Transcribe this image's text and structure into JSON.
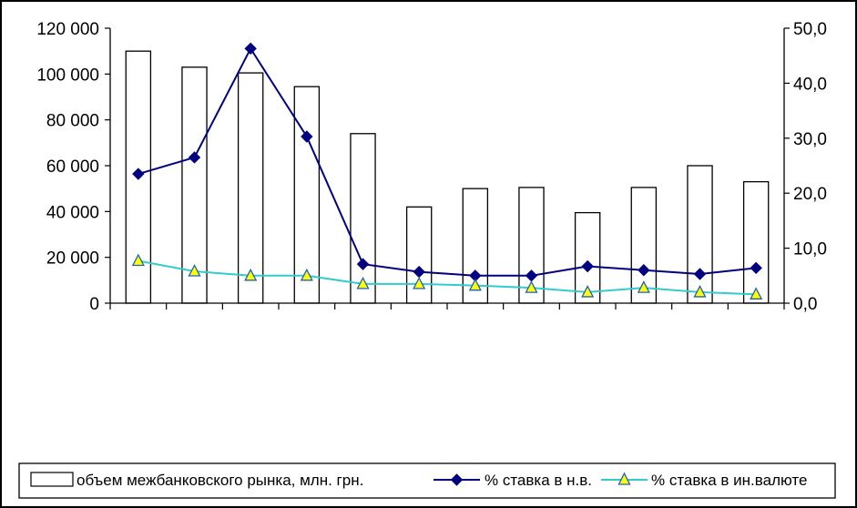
{
  "chart_data": {
    "type": "bar",
    "categories": [
      "",
      "",
      "",
      "",
      "",
      "",
      "",
      "",
      "",
      "",
      "",
      ""
    ],
    "left_axis": {
      "ylim": [
        0,
        120000
      ],
      "ticks": [
        0,
        20000,
        40000,
        60000,
        80000,
        100000,
        120000
      ],
      "tick_labels": [
        "0",
        "20 000",
        "40 000",
        "60 000",
        "80 000",
        "100 000",
        "120 000"
      ]
    },
    "right_axis": {
      "ylim": [
        0,
        50
      ],
      "ticks": [
        0,
        10,
        20,
        30,
        40,
        50
      ],
      "tick_labels": [
        "0,0",
        "10,0",
        "20,0",
        "30,0",
        "40,0",
        "50,0"
      ]
    },
    "grid": false,
    "legend_position": "bottom",
    "series": [
      {
        "name": "объем межбанковского рынка, млн. грн.",
        "type": "bar",
        "axis": "left",
        "color": "#ffffff",
        "edge_color": "#000000",
        "values": [
          110000,
          103000,
          100500,
          94500,
          74000,
          42000,
          50000,
          50500,
          39500,
          50500,
          60000,
          53000
        ]
      },
      {
        "name": "% ставка в н.в.",
        "type": "line",
        "axis": "right",
        "color": "#000080",
        "marker": "diamond",
        "values": [
          23.5,
          26.5,
          46.3,
          30.3,
          7.1,
          5.7,
          5.0,
          5.0,
          6.7,
          6.0,
          5.3,
          6.4
        ]
      },
      {
        "name": "% ставка в ин.валюте",
        "type": "line",
        "axis": "right",
        "color": "#33cccc",
        "marker": "triangle",
        "marker_fill": "#ffff00",
        "values": [
          7.7,
          5.8,
          5.0,
          5.0,
          3.5,
          3.5,
          3.2,
          2.8,
          2.0,
          2.8,
          2.0,
          1.6
        ]
      }
    ]
  }
}
